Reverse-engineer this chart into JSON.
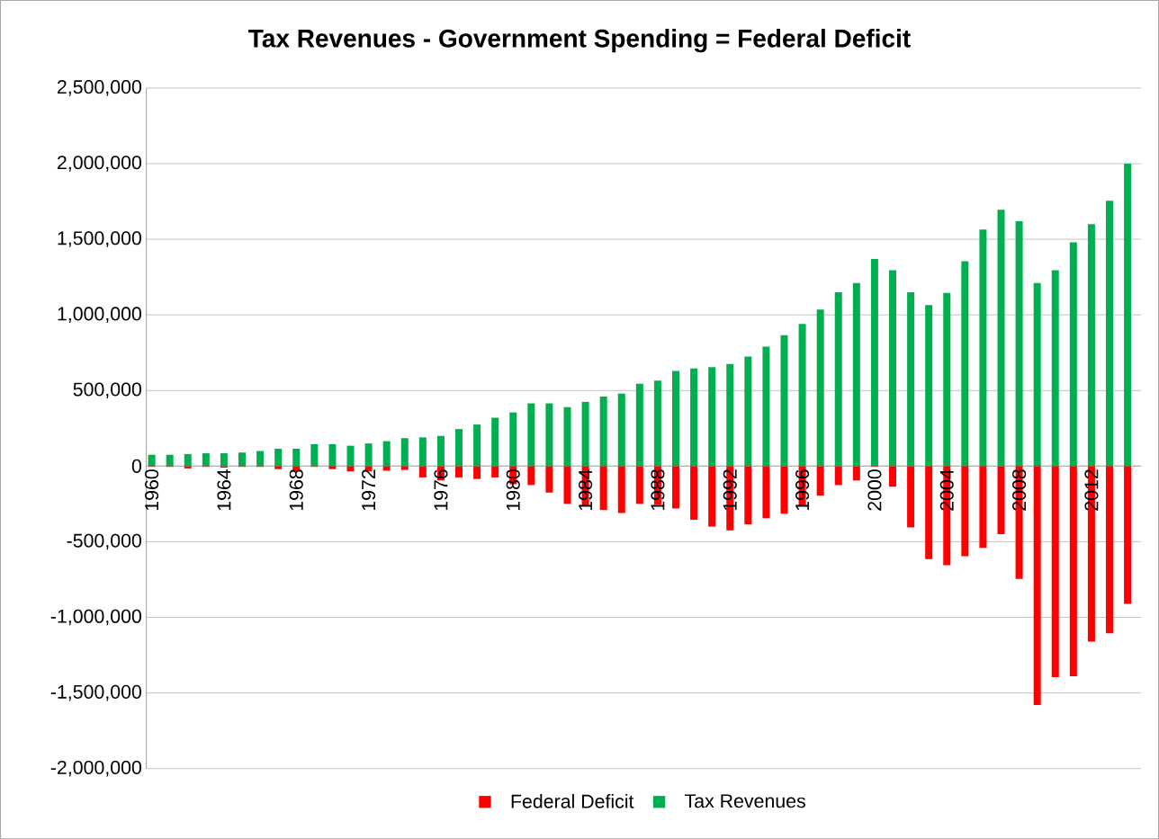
{
  "chart_data": {
    "type": "bar",
    "title": "Tax Revenues - Government Spending = Federal Deficit",
    "categories": [
      "1960",
      null,
      null,
      null,
      "1964",
      null,
      null,
      null,
      "1968",
      null,
      null,
      null,
      "1972",
      null,
      null,
      null,
      "1976",
      null,
      null,
      null,
      "1980",
      null,
      null,
      null,
      "1984",
      null,
      null,
      null,
      "1988",
      null,
      null,
      null,
      "1992",
      null,
      null,
      null,
      "1996",
      null,
      null,
      null,
      "2000",
      null,
      null,
      null,
      "2004",
      null,
      null,
      null,
      "2008",
      null,
      null,
      null,
      "2012",
      null,
      null
    ],
    "series": [
      {
        "name": "Tax Revenues",
        "color": "#00b050",
        "values": [
          75000,
          75000,
          80000,
          85000,
          85000,
          90000,
          100000,
          115000,
          115000,
          145000,
          145000,
          135000,
          150000,
          165000,
          185000,
          190000,
          200000,
          245000,
          275000,
          320000,
          355000,
          415000,
          415000,
          390000,
          425000,
          460000,
          480000,
          545000,
          565000,
          630000,
          645000,
          655000,
          675000,
          725000,
          790000,
          865000,
          940000,
          1035000,
          1150000,
          1210000,
          1370000,
          1295000,
          1150000,
          1065000,
          1145000,
          1355000,
          1565000,
          1695000,
          1620000,
          1210000,
          1295000,
          1480000,
          1600000,
          1755000,
          2000000
        ]
      },
      {
        "name": "Federal Deficit",
        "color": "#ff0000",
        "values": [
          -5000,
          -5000,
          -15000,
          -5000,
          -10000,
          -5000,
          -5000,
          -20000,
          -35000,
          -5000,
          -20000,
          -35000,
          -35000,
          -30000,
          -25000,
          -75000,
          -95000,
          -75000,
          -85000,
          -75000,
          -120000,
          -125000,
          -175000,
          -250000,
          -260000,
          -290000,
          -310000,
          -250000,
          -255000,
          -280000,
          -355000,
          -400000,
          -425000,
          -385000,
          -345000,
          -315000,
          -260000,
          -195000,
          -125000,
          -95000,
          -5000,
          -135000,
          -405000,
          -615000,
          -655000,
          -595000,
          -540000,
          -450000,
          -745000,
          -1580000,
          -1395000,
          -1390000,
          -1160000,
          -1105000,
          -910000
        ]
      }
    ],
    "ylim": [
      -2000000,
      2500000
    ],
    "yticks": [
      {
        "value": -2000000,
        "label": "-2,000,000"
      },
      {
        "value": -1500000,
        "label": "-1,500,000"
      },
      {
        "value": -1000000,
        "label": "-1,000,000"
      },
      {
        "value": -500000,
        "label": "-500,000"
      },
      0,
      {
        "value": 500000,
        "label": "500,000"
      },
      {
        "value": 1000000,
        "label": "1,000,000"
      },
      {
        "value": 1500000,
        "label": "1,500,000"
      },
      {
        "value": 2000000,
        "label": "2,000,000"
      },
      {
        "value": 2500000,
        "label": "2,500,000"
      }
    ],
    "stacked": true,
    "grid": "y",
    "legend": "bottom"
  }
}
